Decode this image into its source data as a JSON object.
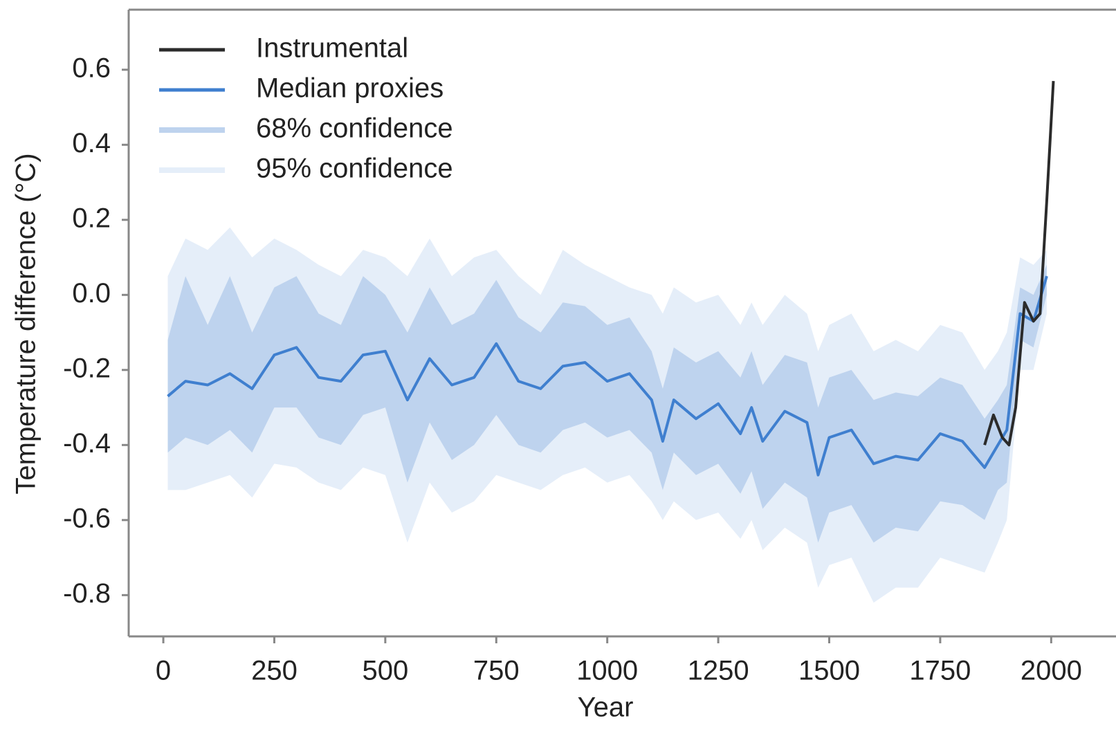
{
  "chart_data": {
    "type": "line",
    "x_label": "Year",
    "y_label": "Temperature difference (°C)",
    "xlim": [
      -78,
      2146
    ],
    "ylim": [
      -0.91,
      0.76
    ],
    "xticks": [
      0,
      250,
      500,
      750,
      1000,
      1250,
      1500,
      1750,
      2000
    ],
    "yticks": [
      -0.8,
      -0.6,
      -0.4,
      -0.2,
      {
        "value": 0,
        "label": "0.0"
      },
      0.2,
      0.4,
      0.6
    ],
    "legend": "upper left",
    "x": [
      10,
      50,
      100,
      150,
      200,
      250,
      300,
      350,
      400,
      450,
      500,
      550,
      600,
      650,
      700,
      750,
      800,
      850,
      900,
      950,
      1000,
      1050,
      1100,
      1125,
      1150,
      1200,
      1250,
      1300,
      1325,
      1350,
      1400,
      1450,
      1475,
      1500,
      1550,
      1600,
      1650,
      1700,
      1750,
      1800,
      1850,
      1880,
      1900,
      1930,
      1960,
      1990
    ],
    "series": [
      {
        "name": "Instrumental",
        "color": "#2b2b2b",
        "x": [
          1850,
          1870,
          1890,
          1905,
          1920,
          1940,
          1960,
          1975,
          1990,
          2005
        ],
        "values": [
          -0.4,
          -0.32,
          -0.38,
          -0.4,
          -0.3,
          -0.02,
          -0.07,
          -0.05,
          0.25,
          0.57
        ]
      },
      {
        "name": "Median proxies",
        "color": "#3f7fcf",
        "values": [
          -0.27,
          -0.23,
          -0.24,
          -0.21,
          -0.25,
          -0.16,
          -0.14,
          -0.22,
          -0.23,
          -0.16,
          -0.15,
          -0.28,
          -0.17,
          -0.24,
          -0.22,
          -0.13,
          -0.23,
          -0.25,
          -0.19,
          -0.18,
          -0.23,
          -0.21,
          -0.28,
          -0.39,
          -0.28,
          -0.33,
          -0.29,
          -0.37,
          -0.3,
          -0.39,
          -0.31,
          -0.34,
          -0.48,
          -0.38,
          -0.36,
          -0.45,
          -0.43,
          -0.44,
          -0.37,
          -0.39,
          -0.46,
          -0.4,
          -0.36,
          -0.05,
          -0.07,
          0.05
        ]
      },
      {
        "name": "68% confidence",
        "color": "#bed3ee",
        "upper": [
          -0.12,
          0.05,
          -0.08,
          0.05,
          -0.1,
          0.02,
          0.05,
          -0.05,
          -0.08,
          0.05,
          0.0,
          -0.1,
          0.02,
          -0.08,
          -0.05,
          0.04,
          -0.06,
          -0.1,
          -0.02,
          -0.03,
          -0.08,
          -0.06,
          -0.15,
          -0.25,
          -0.14,
          -0.18,
          -0.15,
          -0.22,
          -0.15,
          -0.24,
          -0.16,
          -0.18,
          -0.3,
          -0.22,
          -0.2,
          -0.28,
          -0.26,
          -0.27,
          -0.22,
          -0.24,
          -0.33,
          -0.28,
          -0.24,
          0.02,
          0.0,
          0.08
        ],
        "lower": [
          -0.42,
          -0.38,
          -0.4,
          -0.36,
          -0.42,
          -0.3,
          -0.3,
          -0.38,
          -0.4,
          -0.32,
          -0.3,
          -0.5,
          -0.34,
          -0.44,
          -0.4,
          -0.32,
          -0.4,
          -0.42,
          -0.36,
          -0.34,
          -0.38,
          -0.36,
          -0.42,
          -0.52,
          -0.42,
          -0.48,
          -0.45,
          -0.53,
          -0.47,
          -0.57,
          -0.5,
          -0.54,
          -0.66,
          -0.58,
          -0.56,
          -0.66,
          -0.62,
          -0.63,
          -0.55,
          -0.56,
          -0.6,
          -0.52,
          -0.5,
          -0.12,
          -0.14,
          0.0
        ]
      },
      {
        "name": "95% confidence",
        "color": "#e5eef9",
        "upper": [
          0.05,
          0.15,
          0.12,
          0.18,
          0.1,
          0.15,
          0.12,
          0.08,
          0.05,
          0.12,
          0.1,
          0.05,
          0.15,
          0.05,
          0.1,
          0.12,
          0.05,
          0.0,
          0.12,
          0.08,
          0.05,
          0.02,
          0.0,
          -0.05,
          0.02,
          -0.02,
          0.0,
          -0.08,
          -0.02,
          -0.08,
          0.0,
          -0.05,
          -0.15,
          -0.08,
          -0.05,
          -0.15,
          -0.12,
          -0.15,
          -0.08,
          -0.1,
          -0.2,
          -0.15,
          -0.1,
          0.1,
          0.08,
          0.12
        ],
        "lower": [
          -0.52,
          -0.52,
          -0.5,
          -0.48,
          -0.54,
          -0.45,
          -0.46,
          -0.5,
          -0.52,
          -0.46,
          -0.48,
          -0.66,
          -0.5,
          -0.58,
          -0.55,
          -0.48,
          -0.5,
          -0.52,
          -0.48,
          -0.46,
          -0.5,
          -0.48,
          -0.55,
          -0.6,
          -0.55,
          -0.6,
          -0.58,
          -0.65,
          -0.6,
          -0.68,
          -0.62,
          -0.66,
          -0.78,
          -0.72,
          -0.7,
          -0.82,
          -0.78,
          -0.78,
          -0.7,
          -0.72,
          -0.74,
          -0.66,
          -0.6,
          -0.2,
          -0.2,
          -0.05
        ]
      }
    ]
  }
}
